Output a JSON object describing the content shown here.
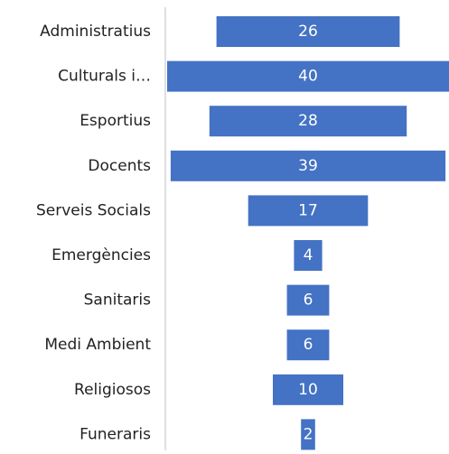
{
  "chart_data": {
    "type": "funnel",
    "categories": [
      "Administratius",
      "Culturals i…",
      "Esportius",
      "Docents",
      "Serveis Socials",
      "Emergències",
      "Sanitaris",
      "Medi Ambient",
      "Religiosos",
      "Funeraris"
    ],
    "values": [
      26,
      40,
      28,
      39,
      17,
      4,
      6,
      6,
      10,
      2
    ],
    "color": "#4472c4"
  }
}
